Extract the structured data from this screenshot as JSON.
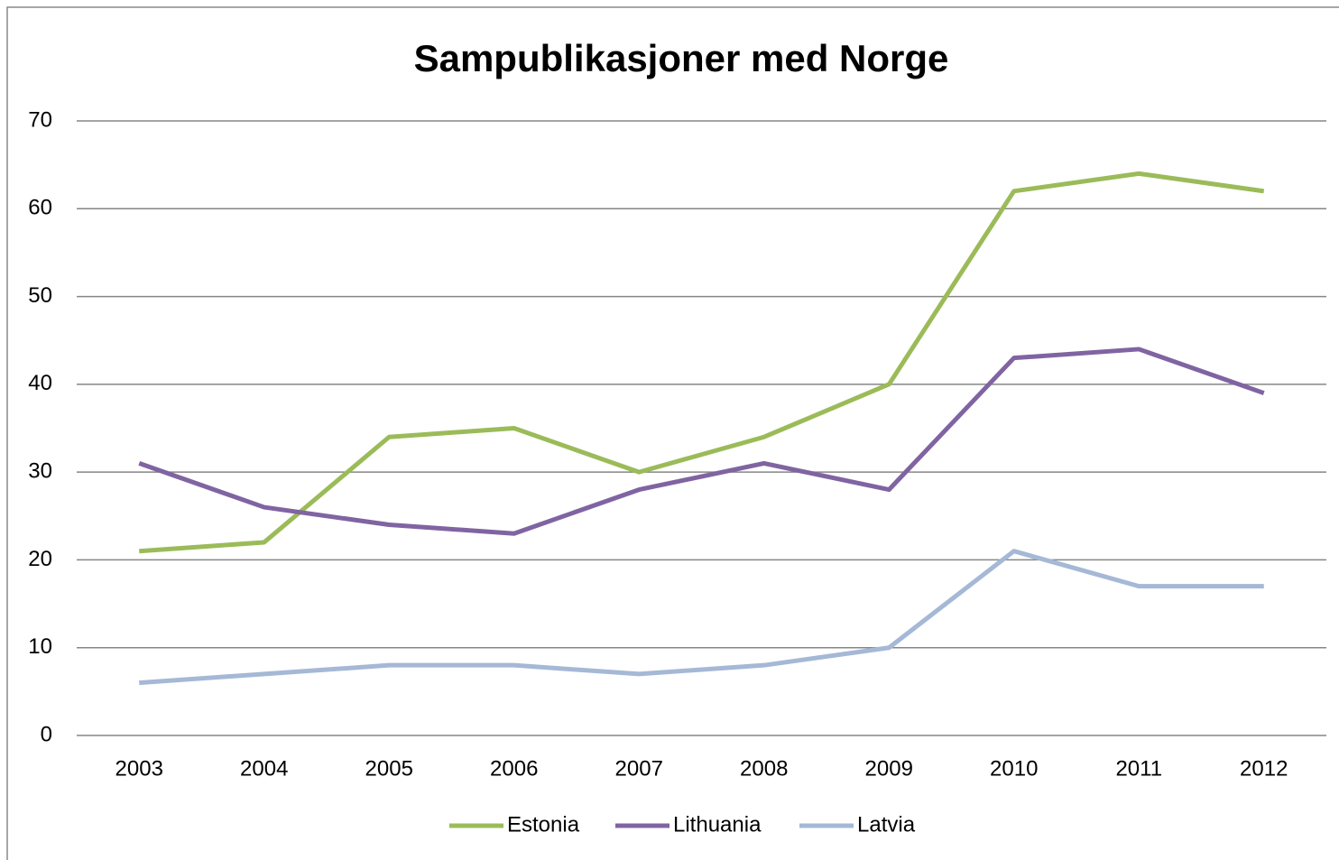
{
  "chart_data": {
    "type": "line",
    "title": "Sampublikasjoner med Norge",
    "categories": [
      "2003",
      "2004",
      "2005",
      "2006",
      "2007",
      "2008",
      "2009",
      "2010",
      "2011",
      "2012"
    ],
    "series": [
      {
        "name": "Estonia",
        "color": "#9bbb59",
        "values": [
          21,
          22,
          34,
          35,
          30,
          34,
          40,
          62,
          64,
          62
        ]
      },
      {
        "name": "Lithuania",
        "color": "#8064a2",
        "values": [
          31,
          26,
          24,
          23,
          28,
          31,
          28,
          43,
          44,
          39
        ]
      },
      {
        "name": "Latvia",
        "color": "#a5b8d6",
        "values": [
          6,
          7,
          8,
          8,
          7,
          8,
          10,
          21,
          17,
          17
        ]
      }
    ],
    "ylim": [
      0,
      70
    ],
    "yticks": [
      0,
      10,
      20,
      30,
      40,
      50,
      60,
      70
    ],
    "grid": true,
    "legend": "bottom"
  }
}
